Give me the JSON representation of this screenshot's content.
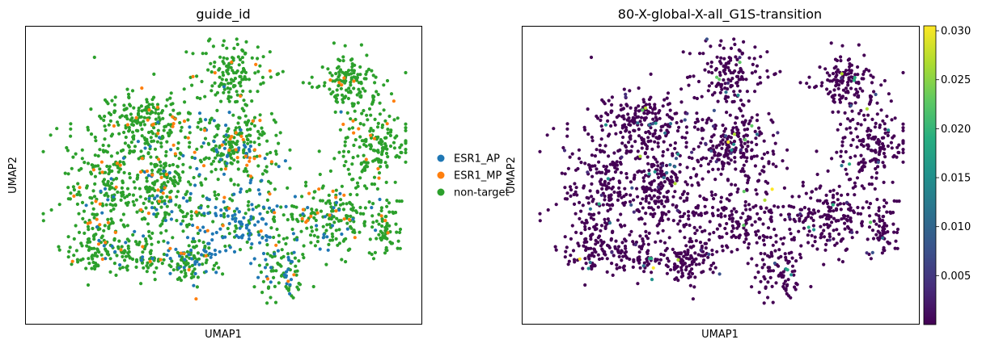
{
  "chart_data": [
    {
      "type": "scatter",
      "title": "guide_id",
      "xlabel": "UMAP1",
      "ylabel": "UMAP2",
      "grid": false,
      "legend_position": "right outside",
      "series": [
        {
          "name": "ESR1_AP",
          "color": "#1f77b4",
          "count": 260
        },
        {
          "name": "ESR1_MP",
          "color": "#ff7f0e",
          "count": 140
        },
        {
          "name": "non-target",
          "color": "#2ca02c",
          "count": 1750
        }
      ]
    },
    {
      "type": "scatter",
      "title": "80-X-global-X-all_G1S-transition",
      "xlabel": "UMAP1",
      "ylabel": "UMAP2",
      "grid": false,
      "colormap": "viridis",
      "colorbar": {
        "range": [
          0.0,
          0.0305
        ],
        "ticks": [
          "0.005",
          "0.010",
          "0.015",
          "0.020",
          "0.025",
          "0.030"
        ]
      },
      "low_value_color": "#440154",
      "point_count": 2150
    }
  ]
}
